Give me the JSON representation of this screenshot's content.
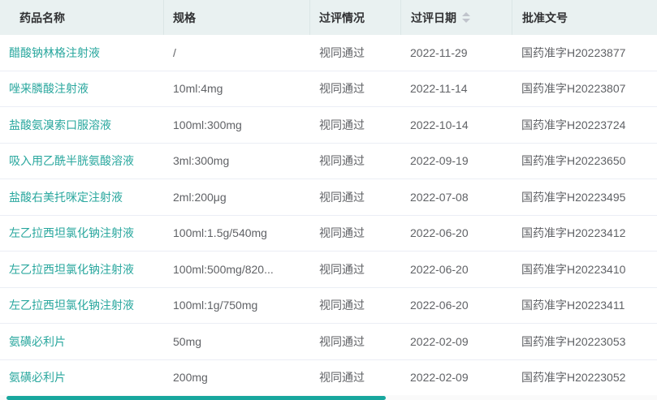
{
  "table": {
    "columns": [
      {
        "label": "药品名称",
        "sortable": false
      },
      {
        "label": "规格",
        "sortable": false
      },
      {
        "label": "过评情况",
        "sortable": false
      },
      {
        "label": "过评日期",
        "sortable": true
      },
      {
        "label": "批准文号",
        "sortable": false
      }
    ],
    "rows": [
      {
        "name": "醋酸钠林格注射液",
        "spec": "/",
        "status": "视同通过",
        "date": "2022-11-29",
        "approval": "国药准字H20223877"
      },
      {
        "name": "唑来膦酸注射液",
        "spec": "10ml:4mg",
        "status": "视同通过",
        "date": "2022-11-14",
        "approval": "国药准字H20223807"
      },
      {
        "name": "盐酸氨溴索口服溶液",
        "spec": "100ml:300mg",
        "status": "视同通过",
        "date": "2022-10-14",
        "approval": "国药准字H20223724"
      },
      {
        "name": "吸入用乙酰半胱氨酸溶液",
        "spec": "3ml:300mg",
        "status": "视同通过",
        "date": "2022-09-19",
        "approval": "国药准字H20223650"
      },
      {
        "name": "盐酸右美托咪定注射液",
        "spec": "2ml:200μg",
        "status": "视同通过",
        "date": "2022-07-08",
        "approval": "国药准字H20223495"
      },
      {
        "name": "左乙拉西坦氯化钠注射液",
        "spec": "100ml:1.5g/540mg",
        "status": "视同通过",
        "date": "2022-06-20",
        "approval": "国药准字H20223412"
      },
      {
        "name": "左乙拉西坦氯化钠注射液",
        "spec": "100ml:500mg/820...",
        "status": "视同通过",
        "date": "2022-06-20",
        "approval": "国药准字H20223410"
      },
      {
        "name": "左乙拉西坦氯化钠注射液",
        "spec": "100ml:1g/750mg",
        "status": "视同通过",
        "date": "2022-06-20",
        "approval": "国药准字H20223411"
      },
      {
        "name": "氨磺必利片",
        "spec": "50mg",
        "status": "视同通过",
        "date": "2022-02-09",
        "approval": "国药准字H20223053"
      },
      {
        "name": "氨磺必利片",
        "spec": "200mg",
        "status": "视同通过",
        "date": "2022-02-09",
        "approval": "国药准字H20223052"
      }
    ]
  },
  "colors": {
    "header_background": "#e9f1f1",
    "header_text": "#303133",
    "body_text": "#606266",
    "drug_name_accent": "#29a79e",
    "row_border": "#ebeef5",
    "sort_caret": "#c0c4cc",
    "scrollbar_thumb": "#18a79e"
  }
}
